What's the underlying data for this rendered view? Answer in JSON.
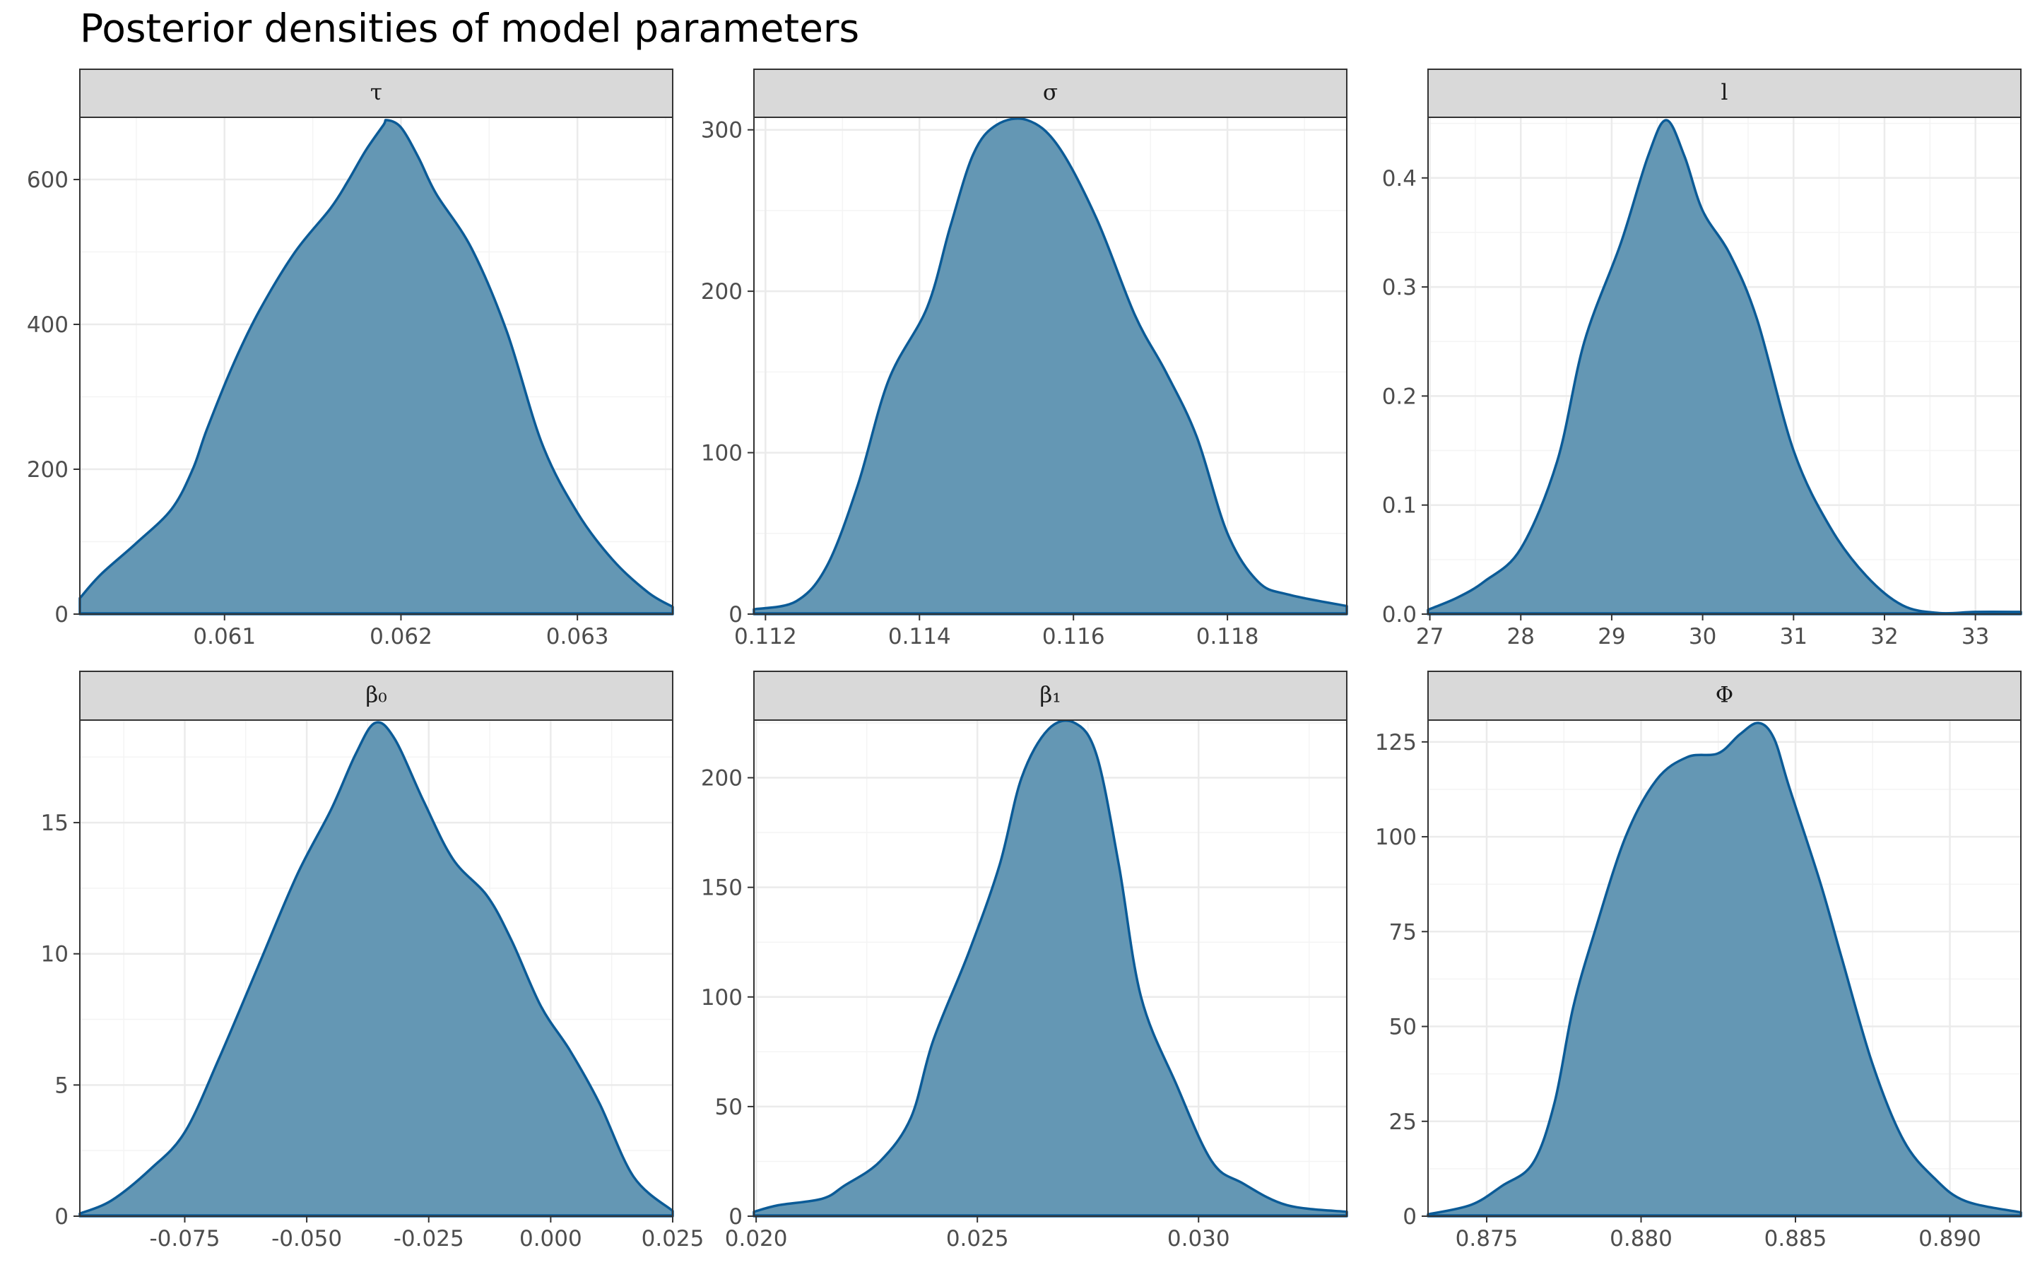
{
  "title": "Posterior densities of model parameters",
  "colors": {
    "fill": "#6497b4",
    "line": "#0b5b97",
    "strip_bg": "#d9d9d9",
    "grid": "#ebebeb",
    "frame": "#333333"
  },
  "chart_data": [
    {
      "type": "area",
      "strip_label": "τ",
      "xlim": [
        0.06018,
        0.06354
      ],
      "ylim": [
        0,
        682
      ],
      "xticks": [
        0.061,
        0.062,
        0.063
      ],
      "xtick_labels": [
        "0.061",
        "0.062",
        "0.063"
      ],
      "yticks": [
        0,
        200,
        400,
        600
      ],
      "ytick_labels": [
        "0",
        "200",
        "400",
        "600"
      ],
      "points": [
        [
          0.06018,
          22
        ],
        [
          0.0603,
          55
        ],
        [
          0.0605,
          98
        ],
        [
          0.0607,
          145
        ],
        [
          0.06082,
          200
        ],
        [
          0.0609,
          255
        ],
        [
          0.06105,
          345
        ],
        [
          0.0612,
          420
        ],
        [
          0.0614,
          500
        ],
        [
          0.0616,
          560
        ],
        [
          0.0617,
          598
        ],
        [
          0.0618,
          640
        ],
        [
          0.0619,
          675
        ],
        [
          0.06192,
          682
        ],
        [
          0.062,
          672
        ],
        [
          0.0621,
          630
        ],
        [
          0.0622,
          580
        ],
        [
          0.0624,
          505
        ],
        [
          0.0626,
          390
        ],
        [
          0.0628,
          235
        ],
        [
          0.063,
          140
        ],
        [
          0.0632,
          75
        ],
        [
          0.0634,
          30
        ],
        [
          0.06354,
          10
        ]
      ]
    },
    {
      "type": "area",
      "strip_label": "σ",
      "xlim": [
        0.11185,
        0.11955
      ],
      "ylim": [
        0,
        306
      ],
      "xticks": [
        0.112,
        0.114,
        0.116,
        0.118
      ],
      "xtick_labels": [
        "0.112",
        "0.114",
        "0.116",
        "0.118"
      ],
      "yticks": [
        0,
        100,
        200,
        300
      ],
      "ytick_labels": [
        "0",
        "100",
        "200",
        "300"
      ],
      "points": [
        [
          0.11185,
          3
        ],
        [
          0.1124,
          8
        ],
        [
          0.1128,
          30
        ],
        [
          0.1132,
          80
        ],
        [
          0.1136,
          145
        ],
        [
          0.1141,
          190
        ],
        [
          0.1144,
          240
        ],
        [
          0.1147,
          285
        ],
        [
          0.115,
          303
        ],
        [
          0.1154,
          306
        ],
        [
          0.1158,
          290
        ],
        [
          0.1163,
          245
        ],
        [
          0.1168,
          185
        ],
        [
          0.1172,
          150
        ],
        [
          0.1176,
          110
        ],
        [
          0.118,
          50
        ],
        [
          0.1184,
          20
        ],
        [
          0.1188,
          12
        ],
        [
          0.11955,
          5
        ]
      ]
    },
    {
      "type": "area",
      "strip_label": "l",
      "xlim": [
        26.98,
        33.5
      ],
      "ylim": [
        0,
        0.453
      ],
      "xticks": [
        27,
        28,
        29,
        30,
        31,
        32,
        33
      ],
      "xtick_labels": [
        "27",
        "28",
        "29",
        "30",
        "31",
        "32",
        "33"
      ],
      "yticks": [
        0,
        0.1,
        0.2,
        0.3,
        0.4
      ],
      "ytick_labels": [
        "0.0",
        "0.1",
        "0.2",
        "0.3",
        "0.4"
      ],
      "points": [
        [
          26.98,
          0.004
        ],
        [
          27.3,
          0.015
        ],
        [
          27.6,
          0.03
        ],
        [
          28.0,
          0.06
        ],
        [
          28.4,
          0.14
        ],
        [
          28.7,
          0.25
        ],
        [
          29.1,
          0.34
        ],
        [
          29.4,
          0.42
        ],
        [
          29.6,
          0.453
        ],
        [
          29.8,
          0.42
        ],
        [
          30.0,
          0.37
        ],
        [
          30.3,
          0.33
        ],
        [
          30.6,
          0.27
        ],
        [
          31.0,
          0.15
        ],
        [
          31.4,
          0.08
        ],
        [
          31.8,
          0.035
        ],
        [
          32.2,
          0.008
        ],
        [
          32.6,
          0.001
        ],
        [
          33.0,
          0.002
        ],
        [
          33.5,
          0.002
        ]
      ]
    },
    {
      "type": "area",
      "strip_label": "β₀",
      "xlim": [
        -0.0965,
        0.025
      ],
      "ylim": [
        0,
        18.8
      ],
      "xticks": [
        -0.075,
        -0.05,
        -0.025,
        0.0,
        0.025
      ],
      "xtick_labels": [
        "-0.075",
        "-0.050",
        "-0.025",
        "0.000",
        "0.025"
      ],
      "yticks": [
        0,
        5,
        10,
        15
      ],
      "ytick_labels": [
        "0",
        "5",
        "10",
        "15"
      ],
      "points": [
        [
          -0.0965,
          0.1
        ],
        [
          -0.09,
          0.6
        ],
        [
          -0.082,
          1.8
        ],
        [
          -0.075,
          3.2
        ],
        [
          -0.068,
          6.0
        ],
        [
          -0.06,
          9.5
        ],
        [
          -0.052,
          13.0
        ],
        [
          -0.045,
          15.5
        ],
        [
          -0.04,
          17.6
        ],
        [
          -0.036,
          18.8
        ],
        [
          -0.032,
          18.2
        ],
        [
          -0.026,
          15.8
        ],
        [
          -0.02,
          13.6
        ],
        [
          -0.013,
          12.2
        ],
        [
          -0.008,
          10.5
        ],
        [
          -0.002,
          8.0
        ],
        [
          0.004,
          6.3
        ],
        [
          0.01,
          4.3
        ],
        [
          0.017,
          1.5
        ],
        [
          0.025,
          0.2
        ]
      ]
    },
    {
      "type": "area",
      "strip_label": "β₁",
      "xlim": [
        0.01995,
        0.03335
      ],
      "ylim": [
        0,
        225
      ],
      "xticks": [
        0.02,
        0.025,
        0.03
      ],
      "xtick_labels": [
        "0.020",
        "0.025",
        "0.030"
      ],
      "yticks": [
        0,
        50,
        100,
        150,
        200
      ],
      "ytick_labels": [
        "0",
        "50",
        "100",
        "150",
        "200"
      ],
      "points": [
        [
          0.01995,
          2
        ],
        [
          0.0205,
          5
        ],
        [
          0.0215,
          8
        ],
        [
          0.022,
          14
        ],
        [
          0.0228,
          25
        ],
        [
          0.0235,
          45
        ],
        [
          0.024,
          80
        ],
        [
          0.0248,
          120
        ],
        [
          0.0255,
          160
        ],
        [
          0.026,
          200
        ],
        [
          0.0266,
          222
        ],
        [
          0.0272,
          225
        ],
        [
          0.0277,
          210
        ],
        [
          0.0282,
          160
        ],
        [
          0.0287,
          100
        ],
        [
          0.0295,
          60
        ],
        [
          0.0303,
          25
        ],
        [
          0.031,
          15
        ],
        [
          0.032,
          5
        ],
        [
          0.03335,
          2
        ]
      ]
    },
    {
      "type": "area",
      "strip_label": "Φ",
      "xlim": [
        0.8731,
        0.8923
      ],
      "ylim": [
        0,
        130
      ],
      "xticks": [
        0.875,
        0.88,
        0.885,
        0.89
      ],
      "xtick_labels": [
        "0.875",
        "0.880",
        "0.885",
        "0.890"
      ],
      "yticks": [
        0,
        25,
        50,
        75,
        100,
        125
      ],
      "ytick_labels": [
        "0",
        "25",
        "50",
        "75",
        "100",
        "125"
      ],
      "points": [
        [
          0.8731,
          0.5
        ],
        [
          0.8745,
          3
        ],
        [
          0.8755,
          8
        ],
        [
          0.8765,
          14
        ],
        [
          0.8772,
          30
        ],
        [
          0.8778,
          55
        ],
        [
          0.8785,
          75
        ],
        [
          0.8795,
          100
        ],
        [
          0.8805,
          115
        ],
        [
          0.8815,
          121
        ],
        [
          0.8825,
          122
        ],
        [
          0.8832,
          127
        ],
        [
          0.8838,
          130
        ],
        [
          0.8843,
          126
        ],
        [
          0.8848,
          113
        ],
        [
          0.8858,
          88
        ],
        [
          0.8865,
          68
        ],
        [
          0.8875,
          40
        ],
        [
          0.8885,
          20
        ],
        [
          0.8895,
          10
        ],
        [
          0.8905,
          4
        ],
        [
          0.8923,
          1
        ]
      ]
    }
  ]
}
